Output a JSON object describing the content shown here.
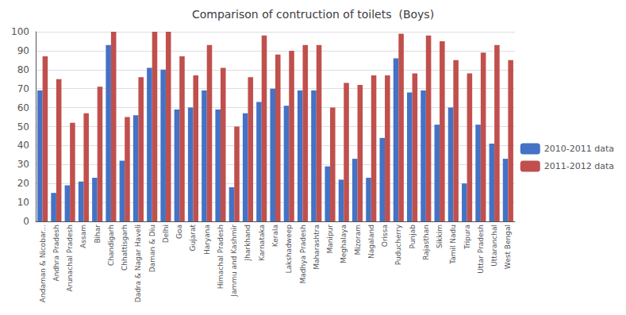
{
  "chart_data": {
    "type": "bar",
    "title": "Comparison of contruction of toilets  (Boys)",
    "categories": [
      "Andaman & Nicobar...",
      "Andhra Pradesh",
      "Arunachal Pradesh",
      "Assam",
      "Bihar",
      "Chandigarh",
      "Chhattisgarh",
      "Dadra & Nagar Haveli",
      "Daman & Diu",
      "Delhi",
      "Goa",
      "Gujarat",
      "Haryana",
      "Himachal Pradesh",
      "Jammu and Kashmir",
      "Jharkhand",
      "Karnataka",
      "Kerala",
      "Lakshadweep",
      "Madhya Pradesh",
      "Maharashtra",
      "Manipur",
      "Meghalaya",
      "Mizoram",
      "Nagaland",
      "Orissa",
      "Puducherry",
      "Punjab",
      "Rajasthan",
      "Sikkim",
      "Tamil Nadu",
      "Tripura",
      "Uttar Pradesh",
      "Uttaranchal",
      "West Bengal"
    ],
    "series": [
      {
        "name": "2010-2011 data",
        "color": "#4472C4",
        "values": [
          69,
          15,
          19,
          21,
          23,
          93,
          32,
          56,
          81,
          80,
          59,
          60,
          69,
          59,
          18,
          57,
          63,
          70,
          61,
          69,
          69,
          29,
          22,
          33,
          23,
          44,
          86,
          68,
          69,
          51,
          60,
          20,
          51,
          41,
          33
        ]
      },
      {
        "name": "2011-2012 data",
        "color": "#C0504D",
        "values": [
          87,
          75,
          52,
          57,
          71,
          100,
          55,
          76,
          100,
          100,
          87,
          77,
          93,
          81,
          50,
          76,
          98,
          88,
          90,
          93,
          93,
          60,
          73,
          72,
          77,
          77,
          99,
          78,
          98,
          95,
          85,
          78,
          89,
          93,
          85
        ]
      }
    ],
    "ylim": [
      0,
      100
    ],
    "yticks": [
      0,
      10,
      20,
      30,
      40,
      50,
      60,
      70,
      80,
      90,
      100
    ],
    "grid": true,
    "legend": "right"
  }
}
